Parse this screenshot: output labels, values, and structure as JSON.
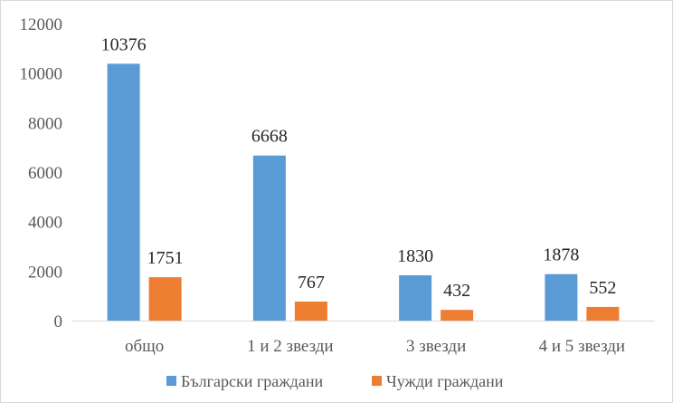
{
  "chart_data": {
    "type": "bar",
    "title": "",
    "xlabel": "",
    "ylabel": "",
    "categories": [
      "общо",
      "1 и 2 звезди",
      "3 звезди",
      "4 и 5 звезди"
    ],
    "series": [
      {
        "name": "Български граждани",
        "values": [
          10376,
          6668,
          1830,
          1878
        ],
        "color": "#5b9bd5"
      },
      {
        "name": "Чужди граждани",
        "values": [
          1751,
          767,
          432,
          552
        ],
        "color": "#ed7d31"
      }
    ],
    "ylim": [
      0,
      12000
    ],
    "yticks": [
      0,
      2000,
      4000,
      6000,
      8000,
      10000,
      12000
    ],
    "grid": false,
    "legend": "bottom"
  }
}
